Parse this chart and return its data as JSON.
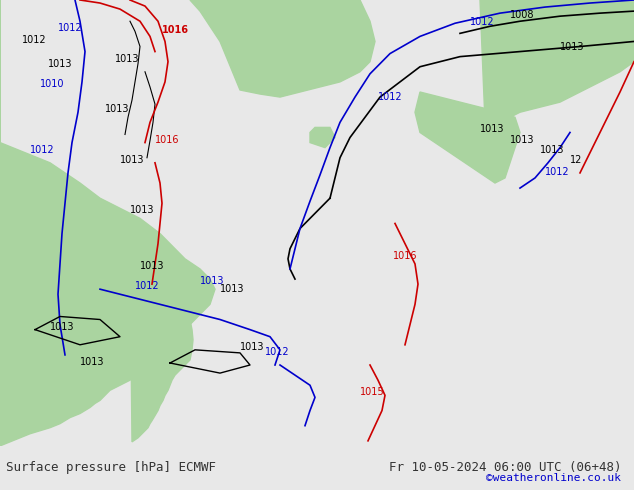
{
  "title_left": "Surface pressure [hPa] ECMWF",
  "title_right": "Fr 10-05-2024 06:00 UTC (06+48)",
  "credit": "©weatheronline.co.uk",
  "bg_color": "#e8e8e8",
  "map_bg": "#d8d8d8",
  "land_color": "#aad4a0",
  "text_color_black": "#000000",
  "text_color_blue": "#0000cc",
  "text_color_red": "#cc0000",
  "bottom_bar_color": "#d0d0d0",
  "bottom_text_color": "#333333",
  "credit_color": "#0000cc",
  "figsize": [
    6.34,
    4.9
  ],
  "dpi": 100
}
